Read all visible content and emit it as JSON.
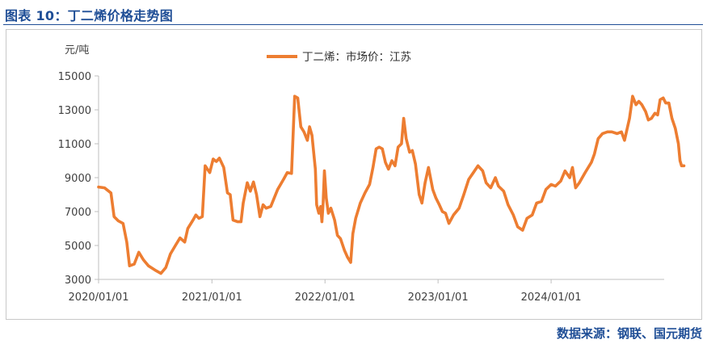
{
  "figure": {
    "title": "图表 10：丁二烯价格走势图",
    "source": "数据来源：钢联、国元期货"
  },
  "colors": {
    "series": "#ed7d31",
    "title": "#1f4e96"
  },
  "chart_data": {
    "type": "line",
    "ylabel": "元/吨",
    "ylim": [
      3000,
      15000
    ],
    "yticks": [
      "15000",
      "13000",
      "11000",
      "9000",
      "7000",
      "5000",
      "3000"
    ],
    "xticks": [
      "2020/01/01",
      "2021/01/01",
      "2022/01/01",
      "2023/01/01",
      "2024/01/01"
    ],
    "x_range": [
      "2020-01-01",
      "2024-12-31"
    ],
    "legend_position": "top-center",
    "grid": false,
    "series": [
      {
        "name": "丁二烯：市场价：江苏",
        "points": [
          [
            "2020-01-01",
            8450
          ],
          [
            "2020-01-20",
            8400
          ],
          [
            "2020-02-10",
            8100
          ],
          [
            "2020-02-20",
            6700
          ],
          [
            "2020-03-05",
            6450
          ],
          [
            "2020-03-20",
            6300
          ],
          [
            "2020-04-01",
            5200
          ],
          [
            "2020-04-10",
            3800
          ],
          [
            "2020-04-25",
            3900
          ],
          [
            "2020-05-10",
            4600
          ],
          [
            "2020-05-25",
            4150
          ],
          [
            "2020-06-10",
            3800
          ],
          [
            "2020-07-01",
            3550
          ],
          [
            "2020-07-20",
            3350
          ],
          [
            "2020-08-05",
            3700
          ],
          [
            "2020-08-20",
            4500
          ],
          [
            "2020-09-05",
            5000
          ],
          [
            "2020-09-20",
            5450
          ],
          [
            "2020-10-05",
            5200
          ],
          [
            "2020-10-15",
            6000
          ],
          [
            "2020-11-01",
            6500
          ],
          [
            "2020-11-10",
            6800
          ],
          [
            "2020-11-20",
            6600
          ],
          [
            "2020-12-01",
            6700
          ],
          [
            "2020-12-10",
            9700
          ],
          [
            "2020-12-25",
            9300
          ],
          [
            "2021-01-05",
            10100
          ],
          [
            "2021-01-15",
            9950
          ],
          [
            "2021-01-25",
            10150
          ],
          [
            "2021-02-08",
            9600
          ],
          [
            "2021-02-20",
            8100
          ],
          [
            "2021-03-01",
            8000
          ],
          [
            "2021-03-10",
            6500
          ],
          [
            "2021-03-25",
            6400
          ],
          [
            "2021-04-05",
            6400
          ],
          [
            "2021-04-12",
            7500
          ],
          [
            "2021-04-25",
            8700
          ],
          [
            "2021-05-05",
            8200
          ],
          [
            "2021-05-15",
            8750
          ],
          [
            "2021-05-25",
            8000
          ],
          [
            "2021-06-05",
            6700
          ],
          [
            "2021-06-15",
            7400
          ],
          [
            "2021-06-25",
            7200
          ],
          [
            "2021-07-10",
            7300
          ],
          [
            "2021-08-01",
            8300
          ],
          [
            "2021-08-20",
            8900
          ],
          [
            "2021-09-01",
            9300
          ],
          [
            "2021-09-15",
            9250
          ],
          [
            "2021-09-25",
            13800
          ],
          [
            "2021-10-05",
            13700
          ],
          [
            "2021-10-15",
            12000
          ],
          [
            "2021-10-25",
            11700
          ],
          [
            "2021-11-05",
            11200
          ],
          [
            "2021-11-12",
            12000
          ],
          [
            "2021-11-20",
            11500
          ],
          [
            "2021-12-01",
            9500
          ],
          [
            "2021-12-05",
            7400
          ],
          [
            "2021-12-12",
            6900
          ],
          [
            "2021-12-18",
            7300
          ],
          [
            "2021-12-22",
            6400
          ],
          [
            "2021-12-26",
            7500
          ],
          [
            "2021-12-30",
            9400
          ],
          [
            "2022-01-05",
            7800
          ],
          [
            "2022-01-12",
            6900
          ],
          [
            "2022-01-20",
            7200
          ],
          [
            "2022-02-01",
            6500
          ],
          [
            "2022-02-10",
            5600
          ],
          [
            "2022-02-20",
            5400
          ],
          [
            "2022-03-05",
            4700
          ],
          [
            "2022-03-15",
            4300
          ],
          [
            "2022-03-25",
            4000
          ],
          [
            "2022-04-01",
            5700
          ],
          [
            "2022-04-10",
            6600
          ],
          [
            "2022-04-25",
            7500
          ],
          [
            "2022-05-10",
            8100
          ],
          [
            "2022-05-25",
            8600
          ],
          [
            "2022-06-05",
            9600
          ],
          [
            "2022-06-15",
            10700
          ],
          [
            "2022-06-25",
            10800
          ],
          [
            "2022-07-05",
            10700
          ],
          [
            "2022-07-15",
            9900
          ],
          [
            "2022-07-25",
            9500
          ],
          [
            "2022-08-05",
            10000
          ],
          [
            "2022-08-15",
            9700
          ],
          [
            "2022-08-25",
            10800
          ],
          [
            "2022-09-05",
            11000
          ],
          [
            "2022-09-12",
            12500
          ],
          [
            "2022-09-20",
            11300
          ],
          [
            "2022-10-01",
            10500
          ],
          [
            "2022-10-10",
            10600
          ],
          [
            "2022-10-20",
            9800
          ],
          [
            "2022-11-01",
            8000
          ],
          [
            "2022-11-10",
            7500
          ],
          [
            "2022-11-20",
            8700
          ],
          [
            "2022-12-01",
            9600
          ],
          [
            "2022-12-15",
            8300
          ],
          [
            "2022-12-25",
            7800
          ],
          [
            "2023-01-05",
            7400
          ],
          [
            "2023-01-15",
            7000
          ],
          [
            "2023-01-25",
            6900
          ],
          [
            "2023-02-05",
            6300
          ],
          [
            "2023-02-20",
            6800
          ],
          [
            "2023-03-10",
            7200
          ],
          [
            "2023-03-25",
            8000
          ],
          [
            "2023-04-10",
            8900
          ],
          [
            "2023-04-25",
            9300
          ],
          [
            "2023-05-10",
            9700
          ],
          [
            "2023-05-25",
            9400
          ],
          [
            "2023-06-05",
            8700
          ],
          [
            "2023-06-20",
            8400
          ],
          [
            "2023-07-05",
            9000
          ],
          [
            "2023-07-15",
            8500
          ],
          [
            "2023-08-01",
            8200
          ],
          [
            "2023-08-15",
            7400
          ],
          [
            "2023-09-01",
            6800
          ],
          [
            "2023-09-15",
            6100
          ],
          [
            "2023-10-01",
            5900
          ],
          [
            "2023-10-15",
            6600
          ],
          [
            "2023-11-01",
            6800
          ],
          [
            "2023-11-15",
            7500
          ],
          [
            "2023-12-01",
            7600
          ],
          [
            "2023-12-15",
            8300
          ],
          [
            "2024-01-01",
            8600
          ],
          [
            "2024-01-15",
            8500
          ],
          [
            "2024-02-01",
            8800
          ],
          [
            "2024-02-15",
            9400
          ],
          [
            "2024-03-01",
            9000
          ],
          [
            "2024-03-10",
            9600
          ],
          [
            "2024-03-20",
            8400
          ],
          [
            "2024-04-01",
            8700
          ],
          [
            "2024-04-20",
            9300
          ],
          [
            "2024-05-10",
            9900
          ],
          [
            "2024-05-20",
            10400
          ],
          [
            "2024-06-01",
            11300
          ],
          [
            "2024-06-15",
            11600
          ],
          [
            "2024-07-01",
            11700
          ],
          [
            "2024-07-15",
            11700
          ],
          [
            "2024-08-01",
            11600
          ],
          [
            "2024-08-15",
            11700
          ],
          [
            "2024-08-25",
            11200
          ],
          [
            "2024-09-10",
            12500
          ],
          [
            "2024-09-20",
            13800
          ],
          [
            "2024-10-01",
            13300
          ],
          [
            "2024-10-10",
            13500
          ],
          [
            "2024-10-20",
            13300
          ],
          [
            "2024-11-01",
            12900
          ],
          [
            "2024-11-10",
            12400
          ],
          [
            "2024-11-20",
            12500
          ],
          [
            "2024-12-01",
            12800
          ],
          [
            "2024-12-10",
            12700
          ],
          [
            "2024-12-18",
            13600
          ],
          [
            "2024-12-28",
            13700
          ],
          [
            "2025-01-05",
            13400
          ],
          [
            "2025-01-15",
            13400
          ],
          [
            "2025-01-25",
            12500
          ],
          [
            "2025-02-05",
            11900
          ],
          [
            "2025-02-15",
            11000
          ],
          [
            "2025-02-20",
            10000
          ],
          [
            "2025-02-25",
            9700
          ],
          [
            "2025-03-05",
            9700
          ]
        ]
      }
    ]
  }
}
